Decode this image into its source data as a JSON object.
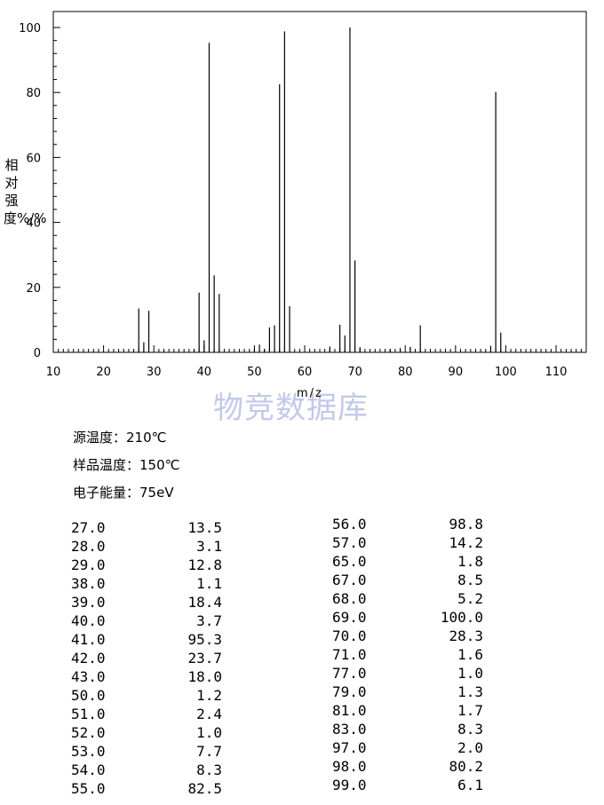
{
  "chart_data": {
    "type": "bar",
    "xlabel": "m/z",
    "ylabel": "相对强度%/%",
    "xlim": [
      10,
      116
    ],
    "ylim": [
      0,
      100
    ],
    "x_ticks": [
      10,
      20,
      30,
      40,
      50,
      60,
      70,
      80,
      90,
      100,
      110
    ],
    "y_ticks": [
      0,
      20,
      40,
      60,
      80,
      100
    ],
    "peaks": [
      {
        "mz": 27.0,
        "value": 13.5
      },
      {
        "mz": 28.0,
        "value": 3.1
      },
      {
        "mz": 29.0,
        "value": 12.8
      },
      {
        "mz": 38.0,
        "value": 1.1
      },
      {
        "mz": 39.0,
        "value": 18.4
      },
      {
        "mz": 40.0,
        "value": 3.7
      },
      {
        "mz": 41.0,
        "value": 95.3
      },
      {
        "mz": 42.0,
        "value": 23.7
      },
      {
        "mz": 43.0,
        "value": 18.0
      },
      {
        "mz": 50.0,
        "value": 1.2
      },
      {
        "mz": 51.0,
        "value": 2.4
      },
      {
        "mz": 52.0,
        "value": 1.0
      },
      {
        "mz": 53.0,
        "value": 7.7
      },
      {
        "mz": 54.0,
        "value": 8.3
      },
      {
        "mz": 55.0,
        "value": 82.5
      },
      {
        "mz": 56.0,
        "value": 98.8
      },
      {
        "mz": 57.0,
        "value": 14.2
      },
      {
        "mz": 65.0,
        "value": 1.8
      },
      {
        "mz": 67.0,
        "value": 8.5
      },
      {
        "mz": 68.0,
        "value": 5.2
      },
      {
        "mz": 69.0,
        "value": 100.0
      },
      {
        "mz": 70.0,
        "value": 28.3
      },
      {
        "mz": 71.0,
        "value": 1.6
      },
      {
        "mz": 77.0,
        "value": 1.0
      },
      {
        "mz": 79.0,
        "value": 1.3
      },
      {
        "mz": 81.0,
        "value": 1.7
      },
      {
        "mz": 83.0,
        "value": 8.3
      },
      {
        "mz": 97.0,
        "value": 2.0
      },
      {
        "mz": 98.0,
        "value": 80.2
      },
      {
        "mz": 99.0,
        "value": 6.1
      }
    ]
  },
  "watermark": "物竞数据库",
  "conditions": {
    "source_temp": "源温度：210℃",
    "sample_temp": "样品温度：150℃",
    "electron_energy": "电子能量：75eV"
  },
  "table_left": [
    [
      "27.0",
      "13.5"
    ],
    [
      "28.0",
      "3.1"
    ],
    [
      "29.0",
      "12.8"
    ],
    [
      "38.0",
      "1.1"
    ],
    [
      "39.0",
      "18.4"
    ],
    [
      "40.0",
      "3.7"
    ],
    [
      "41.0",
      "95.3"
    ],
    [
      "42.0",
      "23.7"
    ],
    [
      "43.0",
      "18.0"
    ],
    [
      "50.0",
      "1.2"
    ],
    [
      "51.0",
      "2.4"
    ],
    [
      "52.0",
      "1.0"
    ],
    [
      "53.0",
      "7.7"
    ],
    [
      "54.0",
      "8.3"
    ],
    [
      "55.0",
      "82.5"
    ]
  ],
  "table_right": [
    [
      "56.0",
      "98.8"
    ],
    [
      "57.0",
      "14.2"
    ],
    [
      "65.0",
      "1.8"
    ],
    [
      "67.0",
      "8.5"
    ],
    [
      "68.0",
      "5.2"
    ],
    [
      "69.0",
      "100.0"
    ],
    [
      "70.0",
      "28.3"
    ],
    [
      "71.0",
      "1.6"
    ],
    [
      "77.0",
      "1.0"
    ],
    [
      "79.0",
      "1.3"
    ],
    [
      "81.0",
      "1.7"
    ],
    [
      "83.0",
      "8.3"
    ],
    [
      "97.0",
      "2.0"
    ],
    [
      "98.0",
      "80.2"
    ],
    [
      "99.0",
      "6.1"
    ]
  ]
}
